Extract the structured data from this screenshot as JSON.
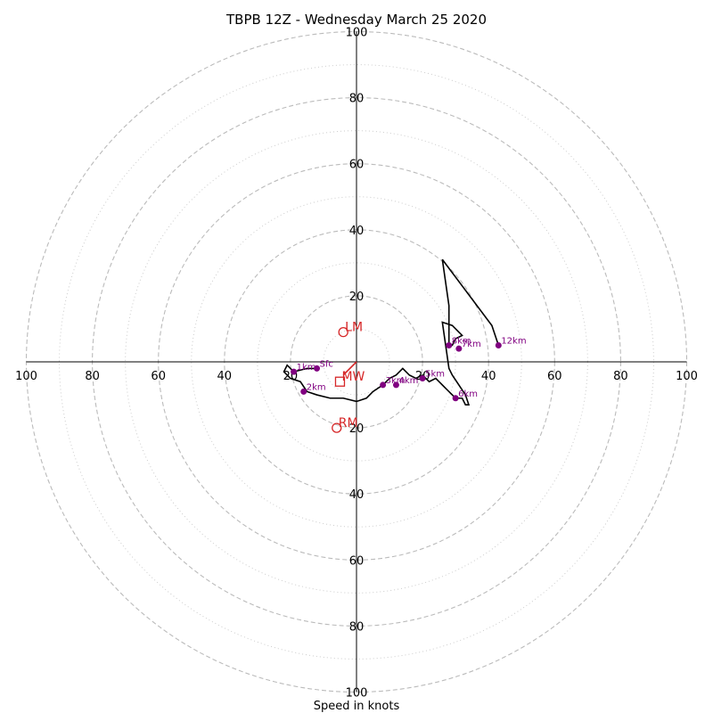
{
  "chart_data": {
    "type": "scatter",
    "title": "TBPB 12Z - Wednesday March 25 2020",
    "xlabel": "Speed in knots",
    "ylabel": "",
    "xlim": [
      -100,
      100
    ],
    "ylim": [
      -100,
      100
    ],
    "rings_major": [
      20,
      40,
      60,
      80,
      100
    ],
    "rings_minor": [
      10,
      30,
      50,
      70,
      90
    ],
    "ticks": [
      {
        "pos": -100,
        "label": "100"
      },
      {
        "pos": -80,
        "label": "80"
      },
      {
        "pos": -60,
        "label": "60"
      },
      {
        "pos": -40,
        "label": "40"
      },
      {
        "pos": -20,
        "label": "20"
      },
      {
        "pos": 20,
        "label": "20"
      },
      {
        "pos": 40,
        "label": "40"
      },
      {
        "pos": 60,
        "label": "60"
      },
      {
        "pos": 80,
        "label": "80"
      },
      {
        "pos": 100,
        "label": "100"
      }
    ],
    "colors": {
      "hodograph": "#000000",
      "height_points": "#800080",
      "motion": "#d62728",
      "ring_major": "#bbbbbb",
      "ring_minor": "#cccccc",
      "axis": "#000000"
    },
    "hodograph": {
      "u": [
        -12,
        -15,
        -19,
        -21,
        -22,
        -20,
        -17,
        -15,
        -12,
        -8,
        -4,
        0,
        3,
        5,
        8,
        10,
        12,
        14,
        16,
        18,
        20,
        22,
        24,
        27,
        29,
        30,
        32,
        33,
        34,
        33,
        31,
        29,
        28,
        26,
        29,
        31,
        32,
        30,
        29,
        28,
        28,
        26,
        41,
        43
      ],
      "v": [
        -2,
        -2,
        -3,
        -1,
        -3,
        -5,
        -6,
        -9,
        -10,
        -11,
        -11,
        -12,
        -11,
        -9,
        -7,
        -5,
        -4,
        -2,
        -4,
        -5,
        -4,
        -6,
        -5,
        -8,
        -10,
        -11,
        -11,
        -13,
        -13,
        -10,
        -7,
        -4,
        -2,
        12,
        11,
        9,
        8,
        7,
        5,
        5,
        17,
        31,
        11,
        5
      ]
    },
    "height_points": [
      {
        "label": "Sfc",
        "u": -12,
        "v": -2
      },
      {
        "label": "1km",
        "u": -19,
        "v": -3
      },
      {
        "label": "2km",
        "u": -16,
        "v": -9
      },
      {
        "label": "3km",
        "u": 8,
        "v": -7
      },
      {
        "label": "4km",
        "u": 12,
        "v": -7
      },
      {
        "label": "5km",
        "u": 20,
        "v": -5
      },
      {
        "label": "6km",
        "u": 30,
        "v": -11
      },
      {
        "label": "7km",
        "u": 31,
        "v": 4
      },
      {
        "label": "8km",
        "u": 28,
        "v": 5
      },
      {
        "label": "12km",
        "u": 43,
        "v": 5
      }
    ],
    "storm_motion": [
      {
        "label": "LM",
        "u": -4,
        "v": 9,
        "marker": "circle"
      },
      {
        "label": "MW",
        "u": -5,
        "v": -6,
        "marker": "square"
      },
      {
        "label": "RM",
        "u": -6,
        "v": -20,
        "marker": "circle"
      }
    ],
    "motion_vector": {
      "u": 0,
      "v": 0,
      "to_u": -4,
      "to_v": -4
    }
  }
}
